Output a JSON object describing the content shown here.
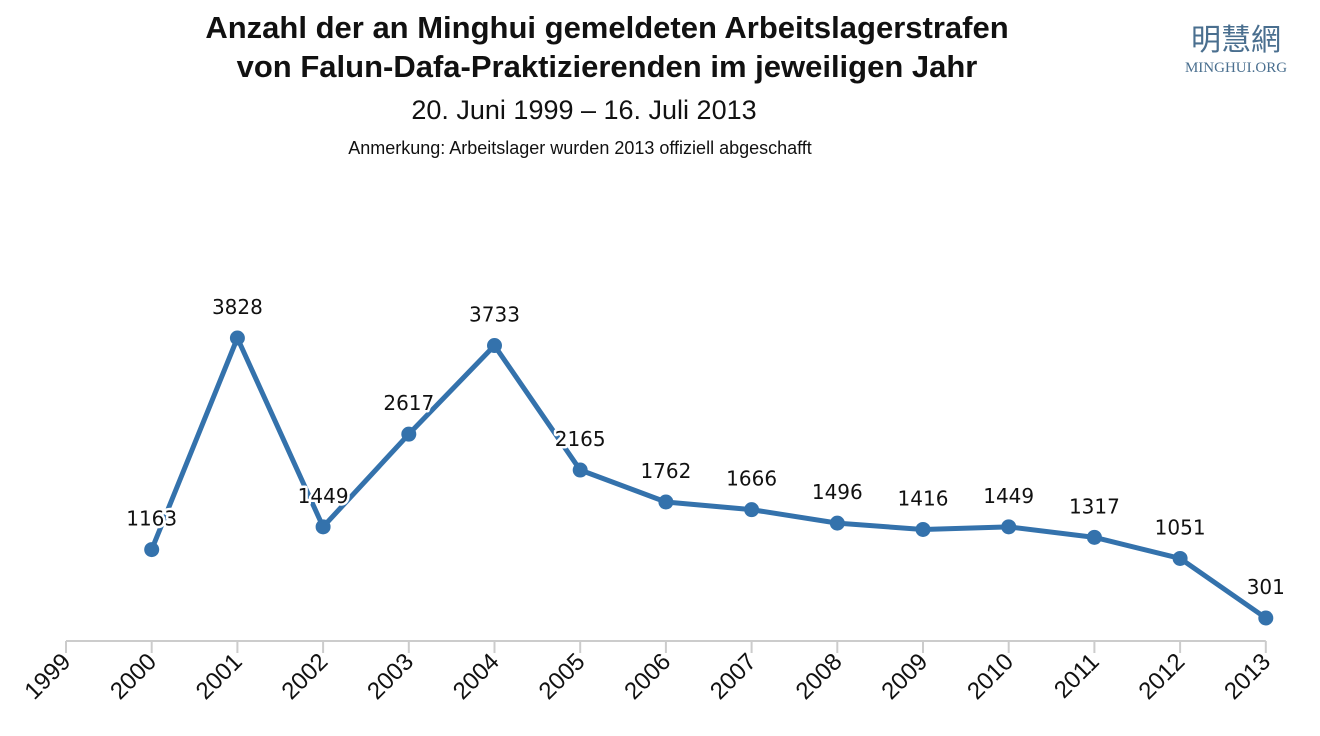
{
  "logo": {
    "cn": "明慧網",
    "en": "MINGHUI.ORG"
  },
  "chart_data": {
    "type": "line",
    "title": "Anzahl der an Minghui gemeldeten Arbeitslagerstrafen",
    "title_line2": "von Falun-Dafa-Praktizierenden im jeweiligen Jahr",
    "subtitle": "20. Juni 1999 – 16. Juli 2013",
    "note": "Anmerkung: Arbeitslager wurden 2013 offiziell abgeschafft",
    "xlabel": "",
    "ylabel": "",
    "categories": [
      "1999",
      "2000",
      "2001",
      "2002",
      "2003",
      "2004",
      "2005",
      "2006",
      "2007",
      "2008",
      "2009",
      "2010",
      "2011",
      "2012",
      "2013"
    ],
    "series": [
      {
        "x": [
          "2000",
          "2001",
          "2002",
          "2003",
          "2004",
          "2005",
          "2006",
          "2007",
          "2008",
          "2009",
          "2010",
          "2011",
          "2012",
          "2013"
        ],
        "values": [
          1163,
          3828,
          1449,
          2617,
          3733,
          2165,
          1762,
          1666,
          1496,
          1416,
          1449,
          1317,
          1051,
          301
        ],
        "color": "#3472ac"
      }
    ],
    "data_labels": true,
    "grid": false,
    "legend": "none",
    "colors": {
      "line": "#3472ac",
      "axis": "#cccccc"
    }
  }
}
